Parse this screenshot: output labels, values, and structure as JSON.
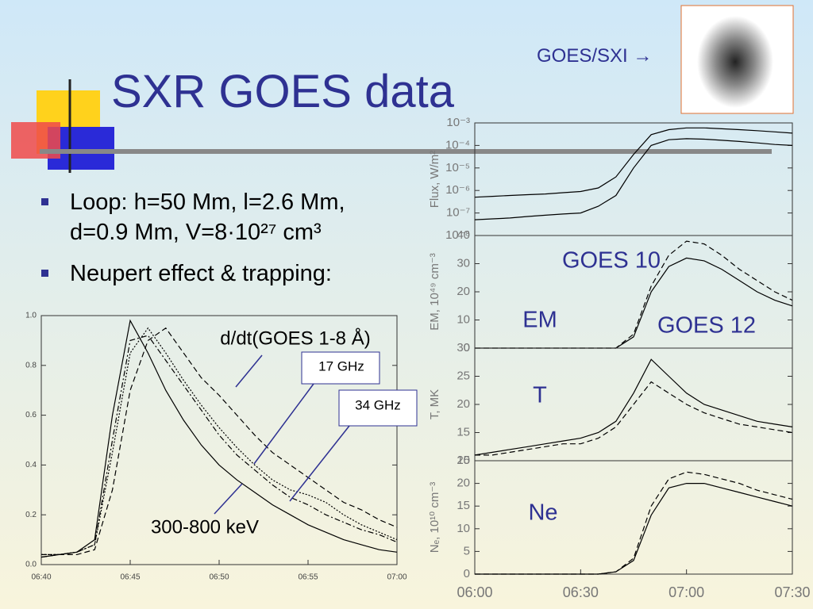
{
  "slide": {
    "title": "SXR GOES data",
    "bullets": [
      "Loop: h=50 Mm, l=2.6 Mm, d=0.9 Mm, V=8·10²⁷ cm³",
      "Neupert effect & trapping:"
    ],
    "image_label": "GOES/SXI →"
  },
  "chart_data": [
    {
      "type": "line",
      "xlim": [
        "06:40",
        "07:00"
      ],
      "xticks": [
        "06:40",
        "06:45",
        "06:50",
        "06:55",
        "07:00"
      ],
      "ylim": [
        0,
        1
      ],
      "yticks": [
        {
          "value": 0,
          "label": "0.0"
        },
        0.2,
        0.4,
        0.6,
        0.8,
        {
          "value": 1,
          "label": "1.0"
        }
      ],
      "x": [
        "06:40",
        "06:41",
        "06:42",
        "06:43",
        "06:44",
        "06:45",
        "06:46",
        "06:47",
        "06:48",
        "06:49",
        "06:50",
        "06:51",
        "06:52",
        "06:53",
        "06:54",
        "06:55",
        "06:56",
        "06:57",
        "06:58",
        "06:59",
        "07:00"
      ],
      "series": [
        {
          "name": "d/dt(GOES 1-8 Å)",
          "color": "#000000",
          "dash": "dashed",
          "values": [
            0.03,
            0.04,
            0.04,
            0.06,
            0.3,
            0.7,
            0.9,
            0.95,
            0.85,
            0.75,
            0.68,
            0.6,
            0.52,
            0.45,
            0.4,
            0.35,
            0.3,
            0.25,
            0.22,
            0.18,
            0.15
          ]
        },
        {
          "name": "17 GHz",
          "color": "#000000",
          "dash": "dotted",
          "values": [
            0.04,
            0.04,
            0.05,
            0.08,
            0.45,
            0.85,
            0.95,
            0.85,
            0.74,
            0.64,
            0.55,
            0.47,
            0.4,
            0.34,
            0.3,
            0.28,
            0.25,
            0.2,
            0.16,
            0.13,
            0.1
          ]
        },
        {
          "name": "34 GHz",
          "color": "#000000",
          "dash": "dashdot",
          "values": [
            0.04,
            0.04,
            0.05,
            0.08,
            0.5,
            0.9,
            0.92,
            0.82,
            0.72,
            0.62,
            0.52,
            0.44,
            0.38,
            0.32,
            0.27,
            0.24,
            0.2,
            0.17,
            0.14,
            0.12,
            0.09
          ]
        },
        {
          "name": "300-800 keV",
          "color": "#000000",
          "dash": "solid",
          "values": [
            0.03,
            0.04,
            0.05,
            0.1,
            0.6,
            0.98,
            0.85,
            0.7,
            0.58,
            0.48,
            0.4,
            0.34,
            0.29,
            0.24,
            0.2,
            0.16,
            0.13,
            0.1,
            0.08,
            0.06,
            0.05
          ]
        }
      ]
    },
    {
      "type": "line",
      "ylog": true,
      "ylabel": "Flux, W/m²",
      "xlim": [
        "06:00",
        "07:30"
      ],
      "ylim": [
        1e-08,
        0.001
      ],
      "yticks": [
        {
          "value": 1e-08,
          "label": "10⁻⁸"
        },
        {
          "value": 1e-07,
          "label": "10⁻⁷"
        },
        {
          "value": 1e-06,
          "label": "10⁻⁶"
        },
        {
          "value": 1e-05,
          "label": "10⁻⁵"
        },
        {
          "value": 0.0001,
          "label": "10⁻⁴"
        },
        {
          "value": 0.001,
          "label": "10⁻³"
        }
      ],
      "x": [
        "06:00",
        "06:05",
        "06:10",
        "06:15",
        "06:20",
        "06:25",
        "06:30",
        "06:35",
        "06:40",
        "06:45",
        "06:50",
        "06:55",
        "07:00",
        "07:05",
        "07:10",
        "07:15",
        "07:20",
        "07:25",
        "07:30"
      ],
      "series": [
        {
          "color": "#000000",
          "dash": "solid",
          "values": [
            5e-07,
            5.5e-07,
            6e-07,
            6.5e-07,
            7e-07,
            8e-07,
            9e-07,
            1.3e-06,
            4e-06,
            4e-05,
            0.0003,
            0.0005,
            0.0006,
            0.0006,
            0.00055,
            0.0005,
            0.00045,
            0.0004,
            0.00035
          ]
        },
        {
          "color": "#000000",
          "dash": "solid",
          "values": [
            5e-08,
            5.5e-08,
            6e-08,
            7e-08,
            8e-08,
            9e-08,
            1e-07,
            2e-07,
            6e-07,
            1e-05,
            0.0001,
            0.00018,
            0.0002,
            0.00019,
            0.00017,
            0.00015,
            0.00013,
            0.00011,
            0.0001
          ]
        }
      ]
    },
    {
      "type": "line",
      "ylabel": "EM, 10⁴⁹ cm⁻³",
      "annotation": "EM",
      "xlim": [
        "06:00",
        "07:30"
      ],
      "ylim": [
        0,
        40
      ],
      "yticks": [
        0,
        10,
        20,
        30,
        40
      ],
      "x": [
        "06:00",
        "06:05",
        "06:10",
        "06:15",
        "06:20",
        "06:25",
        "06:30",
        "06:35",
        "06:40",
        "06:45",
        "06:50",
        "06:55",
        "07:00",
        "07:05",
        "07:10",
        "07:15",
        "07:20",
        "07:25",
        "07:30"
      ],
      "series": [
        {
          "name": "GOES 10",
          "color": "#000000",
          "dash": "dashed",
          "values": [
            0,
            0,
            0,
            0,
            0,
            0,
            0,
            0,
            0,
            5,
            22,
            33,
            38,
            37,
            33,
            28,
            24,
            20,
            17
          ]
        },
        {
          "name": "GOES 12",
          "color": "#000000",
          "dash": "solid",
          "values": [
            0,
            0,
            0,
            0,
            0,
            0,
            0,
            0,
            0,
            4,
            20,
            29,
            32,
            31,
            28,
            24,
            20,
            17,
            15
          ]
        }
      ]
    },
    {
      "type": "line",
      "ylabel": "T, MK",
      "annotation": "T",
      "xlim": [
        "06:00",
        "07:30"
      ],
      "ylim": [
        10,
        30
      ],
      "yticks": [
        10,
        15,
        20,
        25,
        30
      ],
      "x": [
        "06:00",
        "06:05",
        "06:10",
        "06:15",
        "06:20",
        "06:25",
        "06:30",
        "06:35",
        "06:40",
        "06:45",
        "06:50",
        "06:55",
        "07:00",
        "07:05",
        "07:10",
        "07:15",
        "07:20",
        "07:25",
        "07:30"
      ],
      "series": [
        {
          "color": "#000000",
          "dash": "solid",
          "values": [
            11,
            11.5,
            12,
            12.5,
            13,
            13.5,
            14,
            15,
            17,
            22,
            28,
            25,
            22,
            20,
            19,
            18,
            17,
            16.5,
            16
          ]
        },
        {
          "color": "#000000",
          "dash": "dashed",
          "values": [
            11,
            11,
            11.5,
            12,
            12.5,
            13,
            13,
            14,
            16,
            20,
            24,
            22,
            20,
            18.5,
            17.5,
            16.5,
            16,
            15.5,
            15
          ]
        }
      ]
    },
    {
      "type": "line",
      "ylabel": "Nₑ, 10¹⁰ cm⁻³",
      "annotation": "Ne",
      "xlim": [
        "06:00",
        "07:30"
      ],
      "xticks": [
        "06:00",
        "06:30",
        "07:00",
        "07:30"
      ],
      "ylim": [
        0,
        25
      ],
      "yticks": [
        0,
        5,
        10,
        15,
        20,
        25
      ],
      "x": [
        "06:00",
        "06:05",
        "06:10",
        "06:15",
        "06:20",
        "06:25",
        "06:30",
        "06:35",
        "06:40",
        "06:45",
        "06:50",
        "06:55",
        "07:00",
        "07:05",
        "07:10",
        "07:15",
        "07:20",
        "07:25",
        "07:30"
      ],
      "series": [
        {
          "color": "#000000",
          "dash": "solid",
          "values": [
            0,
            0,
            0,
            0,
            0,
            0,
            0,
            0,
            0.5,
            3,
            13,
            19,
            20,
            20,
            19,
            18,
            17,
            16,
            15
          ]
        },
        {
          "color": "#000000",
          "dash": "dashed",
          "values": [
            0,
            0,
            0,
            0,
            0,
            0,
            0,
            0,
            0.5,
            3.5,
            15,
            21,
            22.5,
            22,
            21,
            20,
            18.5,
            17.5,
            16.5
          ]
        }
      ]
    }
  ]
}
